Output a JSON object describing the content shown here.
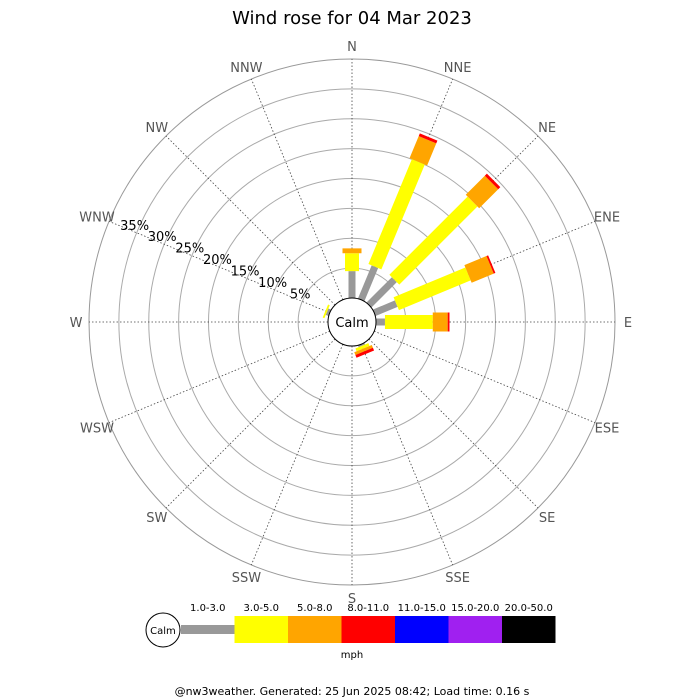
{
  "chart_data": {
    "type": "windrose",
    "title": "Wind rose for 04 Mar 2023",
    "directions": [
      "N",
      "NNE",
      "NE",
      "ENE",
      "E",
      "ESE",
      "SE",
      "SSE",
      "S",
      "SSW",
      "SW",
      "WSW",
      "W",
      "WNW",
      "NW",
      "NNW"
    ],
    "ring_labels": [
      "5%",
      "10%",
      "15%",
      "20%",
      "25%",
      "30%",
      "35%"
    ],
    "ring_values": [
      5,
      10,
      15,
      20,
      25,
      30,
      35
    ],
    "rmax": 40,
    "calm_label": "Calm",
    "speed_bins": [
      {
        "label": "1.0-3.0",
        "color": "#999999"
      },
      {
        "label": "3.0-5.0",
        "color": "#ffff00"
      },
      {
        "label": "5.0-8.0",
        "color": "#ffa500"
      },
      {
        "label": "8.0-11.0",
        "color": "#ff0000"
      },
      {
        "label": "11.0-15.0",
        "color": "#0000ff"
      },
      {
        "label": "15.0-20.0",
        "color": "#a020f0"
      },
      {
        "label": "20.0-50.0",
        "color": "#000000"
      }
    ],
    "unit": "mph",
    "series": [
      {
        "direction": "N",
        "values": [
          4.5,
          3.0,
          0.8,
          0,
          0,
          0,
          0
        ]
      },
      {
        "direction": "NNE",
        "values": [
          6.0,
          19.0,
          4.0,
          0.5,
          0,
          0,
          0
        ]
      },
      {
        "direction": "NE",
        "values": [
          6.0,
          18.5,
          4.5,
          0.5,
          0,
          0,
          0
        ]
      },
      {
        "direction": "ENE",
        "values": [
          4.0,
          13.0,
          4.0,
          0.3,
          0,
          0,
          0
        ]
      },
      {
        "direction": "E",
        "values": [
          1.5,
          8.0,
          2.5,
          0.3,
          0,
          0,
          0
        ]
      },
      {
        "direction": "SSE",
        "values": [
          0.3,
          0.5,
          0.5,
          0.5,
          0,
          0,
          0
        ]
      },
      {
        "direction": "WNW",
        "values": [
          0.5,
          0.3,
          0,
          0,
          0,
          0,
          0
        ]
      }
    ]
  },
  "footer": "@nw3weather. Generated: 25 Jun 2025 08:42; Load time: 0.16 s"
}
